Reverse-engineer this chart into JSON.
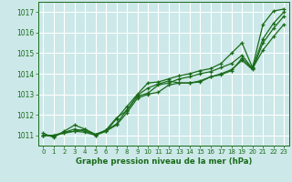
{
  "background_color": "#cce8e8",
  "grid_color": "#ffffff",
  "line_color": "#1a6b1a",
  "title": "Graphe pression niveau de la mer (hPa)",
  "xlim": [
    -0.5,
    23.5
  ],
  "ylim": [
    1010.5,
    1017.5
  ],
  "yticks": [
    1011,
    1012,
    1013,
    1014,
    1015,
    1016,
    1017
  ],
  "xticks": [
    0,
    1,
    2,
    3,
    4,
    5,
    6,
    7,
    8,
    9,
    10,
    11,
    12,
    13,
    14,
    15,
    16,
    17,
    18,
    19,
    20,
    21,
    22,
    23
  ],
  "series": [
    [
      1011.1,
      1010.9,
      1011.2,
      1011.5,
      1011.3,
      1011.0,
      1011.2,
      1011.8,
      1012.4,
      1013.0,
      1013.55,
      1013.6,
      1013.75,
      1013.9,
      1014.0,
      1014.15,
      1014.25,
      1014.5,
      1015.0,
      1015.5,
      1014.3,
      1016.4,
      1017.05,
      1017.15
    ],
    [
      1011.0,
      1010.95,
      1011.15,
      1011.3,
      1011.2,
      1011.05,
      1011.25,
      1011.55,
      1012.25,
      1012.9,
      1013.05,
      1013.45,
      1013.55,
      1013.75,
      1013.85,
      1014.0,
      1014.1,
      1014.3,
      1014.5,
      1014.9,
      1014.25,
      1015.7,
      1016.45,
      1017.0
    ],
    [
      1011.0,
      1011.0,
      1011.15,
      1011.2,
      1011.15,
      1011.0,
      1011.25,
      1011.85,
      1012.2,
      1012.95,
      1013.3,
      1013.5,
      1013.65,
      1013.55,
      1013.55,
      1013.65,
      1013.85,
      1014.0,
      1014.2,
      1014.65,
      1014.2,
      1015.5,
      1016.2,
      1016.8
    ],
    [
      1011.0,
      1011.0,
      1011.1,
      1011.2,
      1011.3,
      1011.05,
      1011.2,
      1011.5,
      1012.1,
      1012.8,
      1013.0,
      1013.1,
      1013.45,
      1013.55,
      1013.55,
      1013.6,
      1013.85,
      1013.95,
      1014.15,
      1014.75,
      1014.25,
      1015.15,
      1015.8,
      1016.4
    ]
  ]
}
